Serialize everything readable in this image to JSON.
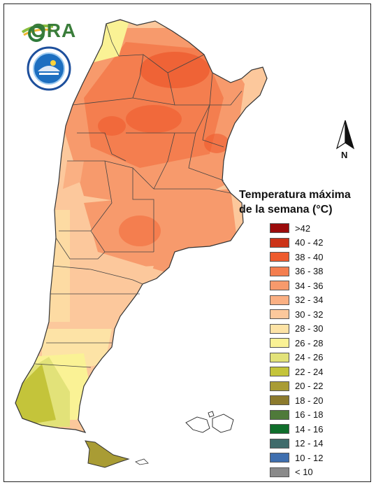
{
  "logo": {
    "name": "ORA",
    "icon": "ora-logo-icon"
  },
  "seal": {
    "icon": "smn-seal-icon"
  },
  "north_arrow": {
    "label": "N",
    "icon": "north-arrow-icon"
  },
  "legend": {
    "title_line1": "Temperatura máxima",
    "title_line2": "de la semana (°C)",
    "items": [
      {
        "label": ">42",
        "color": "#9b0b0b"
      },
      {
        "label": "40 - 42",
        "color": "#cc3318"
      },
      {
        "label": "38 - 40",
        "color": "#ee5b2e"
      },
      {
        "label": "36 - 38",
        "color": "#f47e4f"
      },
      {
        "label": "34 - 36",
        "color": "#f79a6c"
      },
      {
        "label": "32 - 34",
        "color": "#fab083"
      },
      {
        "label": "30 - 32",
        "color": "#fcc89c"
      },
      {
        "label": "28 - 30",
        "color": "#fde3a6"
      },
      {
        "label": "26 - 28",
        "color": "#faf295"
      },
      {
        "label": "24 - 26",
        "color": "#e2e279"
      },
      {
        "label": "22 - 24",
        "color": "#c4c43a"
      },
      {
        "label": "20 - 22",
        "color": "#a99c34"
      },
      {
        "label": "18 - 20",
        "color": "#8c7a2d"
      },
      {
        "label": "16 - 18",
        "color": "#4f7a3a"
      },
      {
        "label": "14 - 16",
        "color": "#0f6e2b"
      },
      {
        "label": "12 - 14",
        "color": "#3f6b6b"
      },
      {
        "label": "10 - 12",
        "color": "#3f6faf"
      },
      {
        "label": "< 10",
        "color": "#8a8a8a"
      }
    ]
  },
  "colors": {
    "border": "#444444",
    "coast": "#333333"
  }
}
